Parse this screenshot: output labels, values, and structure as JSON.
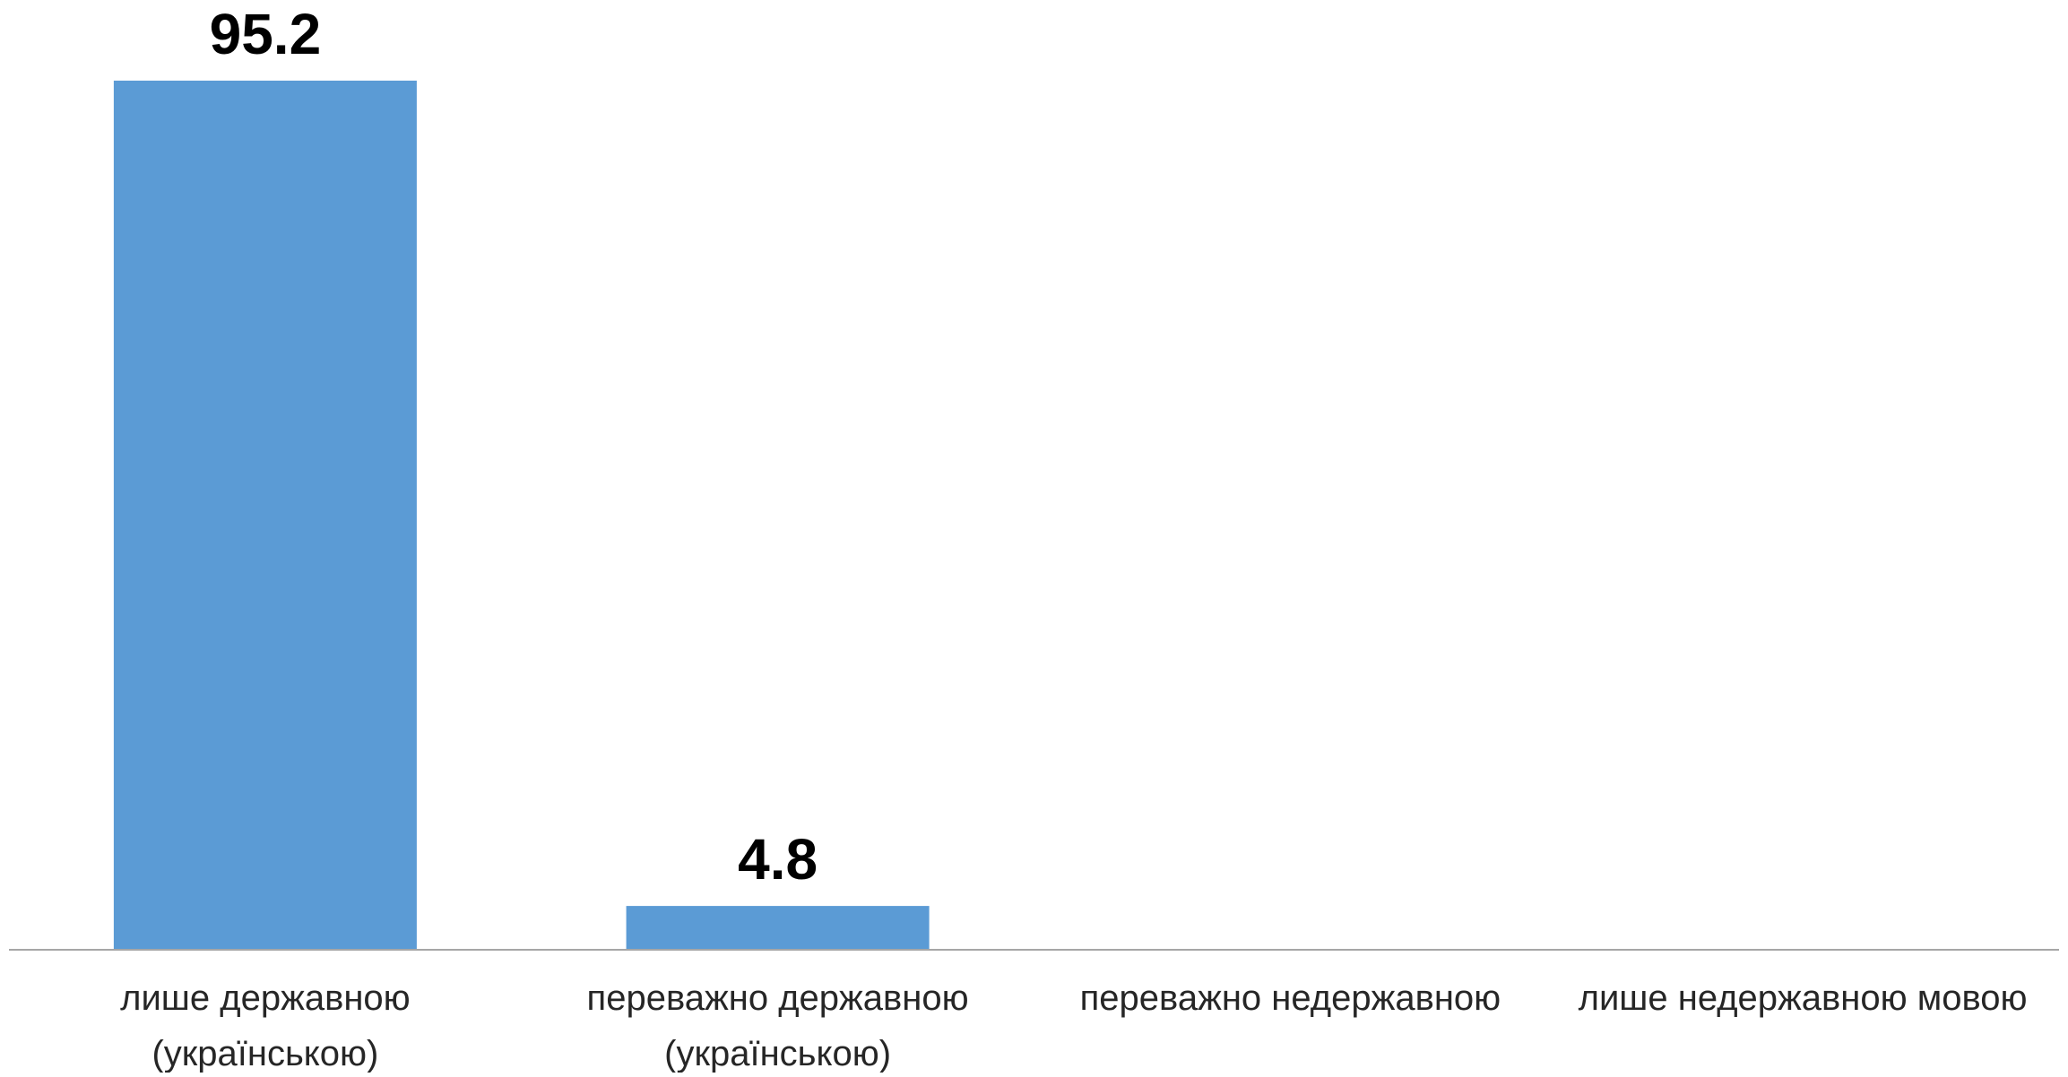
{
  "chart_data": {
    "type": "bar",
    "categories": [
      [
        "лише державною",
        "(українською)"
      ],
      [
        "переважно державною",
        "(українською)"
      ],
      [
        "переважно недержавною"
      ],
      [
        "лише недержавною мовою"
      ]
    ],
    "values": [
      95.2,
      4.8,
      null,
      null
    ],
    "data_labels": [
      "95.2",
      "4.8",
      "",
      ""
    ],
    "bar_color": "#5B9BD5",
    "axis_color": "#A6A6A6",
    "ylim": [
      0,
      95.2
    ],
    "grid": false,
    "legend": false
  }
}
